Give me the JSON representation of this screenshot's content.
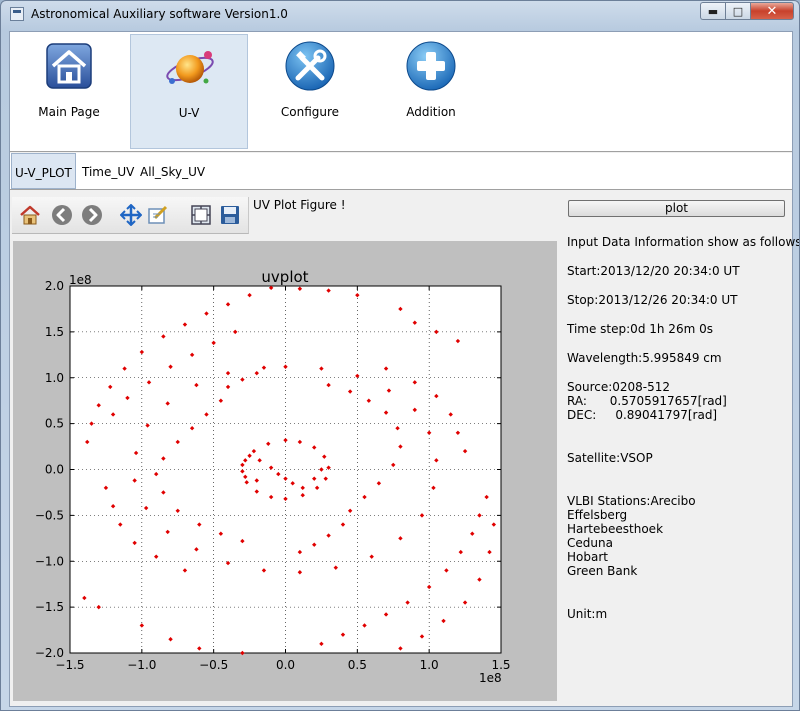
{
  "window": {
    "title": "Astronomical Auxiliary software Version1.0",
    "caption_buttons": {
      "minimize": "▬",
      "maximize": "□",
      "close": "✕"
    }
  },
  "toolbar": {
    "items": [
      {
        "label": "Main Page",
        "icon": "home-icon"
      },
      {
        "label": "U-V",
        "icon": "planet-icon",
        "active": true
      },
      {
        "label": "Configure",
        "icon": "tools-icon"
      },
      {
        "label": "Addition",
        "icon": "plus-icon"
      }
    ]
  },
  "subtabs": [
    {
      "label": "U-V_PLOT",
      "active": true
    },
    {
      "label": "Time_UV"
    },
    {
      "label": "All_Sky_UV"
    }
  ],
  "plot_toolbar": {
    "figure_title": "UV Plot Figure !",
    "tools": [
      "home-icon",
      "back-arrow-icon",
      "forward-arrow-icon",
      "pan-icon",
      "zoom-icon",
      "subplot-config-icon",
      "save-icon"
    ]
  },
  "plot_button": "plot",
  "info": {
    "header": "Input Data Information show as follows:",
    "start": "Start:2013/12/20 20:34:0 UT",
    "stop": "Stop:2013/12/26 20:34:0 UT",
    "time_step": "Time step:0d 1h 26m 0s",
    "wavelength": "Wavelength:5.995849 cm",
    "source": "Source:0208-512",
    "ra": "RA:      0.5705917657[rad]",
    "dec": "DEC:     0.89041797[rad]",
    "satellite": "Satellite:VSOP",
    "stations_header": "VLBI Stations:Arecibo",
    "stations": [
      "Effelsberg",
      "Hartebeesthoek",
      "Ceduna",
      "Hobart",
      "Green Bank"
    ],
    "unit": "Unit:m"
  },
  "chart_data": {
    "type": "scatter",
    "title": "uvplot",
    "x_multiplier": "1e8",
    "y_multiplier": "1e8",
    "xlim": [
      -1.5,
      1.5
    ],
    "ylim": [
      -2.0,
      2.0
    ],
    "xticks": [
      "−1.5",
      "−1.0",
      "−0.5",
      "0.0",
      "0.5",
      "1.0",
      "1.5"
    ],
    "yticks": [
      "2.0",
      "1.5",
      "1.0",
      "0.5",
      "0.0",
      "−0.5",
      "−1.0",
      "−1.5",
      "−2.0"
    ],
    "grid": true,
    "color": "#e00000",
    "series": [
      {
        "points": [
          [
            0.0,
            0.32
          ],
          [
            0.1,
            0.3
          ],
          [
            0.2,
            0.24
          ],
          [
            0.27,
            0.14
          ],
          [
            0.3,
            0.02
          ],
          [
            0.28,
            -0.1
          ],
          [
            0.22,
            -0.2
          ],
          [
            0.12,
            -0.28
          ],
          [
            0.0,
            -0.32
          ],
          [
            -0.1,
            -0.3
          ],
          [
            -0.2,
            -0.24
          ],
          [
            -0.27,
            -0.14
          ],
          [
            -0.3,
            -0.02
          ],
          [
            -0.28,
            0.1
          ],
          [
            -0.22,
            0.2
          ],
          [
            -0.12,
            0.28
          ]
        ]
      },
      {
        "points": [
          [
            -0.25,
            0.15
          ],
          [
            -0.18,
            0.1
          ],
          [
            -0.1,
            0.02
          ],
          [
            -0.05,
            -0.05
          ],
          [
            0.0,
            -0.1
          ],
          [
            0.05,
            -0.15
          ],
          [
            0.12,
            -0.2
          ],
          [
            0.2,
            -0.1
          ],
          [
            0.25,
            0.0
          ],
          [
            -0.3,
            0.05
          ],
          [
            -0.28,
            -0.08
          ],
          [
            -0.2,
            -0.12
          ]
        ]
      },
      {
        "points": [
          [
            0.0,
            1.12
          ],
          [
            0.25,
            1.1
          ],
          [
            0.5,
            1.02
          ],
          [
            0.72,
            0.86
          ],
          [
            0.9,
            0.65
          ],
          [
            1.0,
            0.4
          ],
          [
            1.05,
            0.1
          ],
          [
            1.03,
            -0.2
          ],
          [
            0.95,
            -0.5
          ],
          [
            0.8,
            -0.75
          ],
          [
            0.6,
            -0.95
          ],
          [
            0.35,
            -1.07
          ],
          [
            0.1,
            -1.12
          ],
          [
            -0.15,
            -1.1
          ],
          [
            -0.4,
            -1.02
          ],
          [
            -0.62,
            -0.87
          ],
          [
            -0.82,
            -0.68
          ],
          [
            -0.97,
            -0.42
          ],
          [
            -1.05,
            -0.12
          ],
          [
            -1.04,
            0.18
          ],
          [
            -0.96,
            0.48
          ],
          [
            -0.82,
            0.72
          ],
          [
            -0.62,
            0.92
          ],
          [
            -0.4,
            1.05
          ],
          [
            -0.15,
            1.11
          ]
        ]
      },
      {
        "points": [
          [
            -0.4,
            0.9
          ],
          [
            -0.3,
            0.98
          ],
          [
            -0.2,
            1.05
          ],
          [
            -0.45,
            0.75
          ],
          [
            -0.55,
            0.6
          ],
          [
            -0.65,
            0.45
          ],
          [
            -0.75,
            0.3
          ],
          [
            -0.85,
            0.12
          ],
          [
            -0.9,
            -0.05
          ],
          [
            -0.85,
            -0.25
          ],
          [
            -0.75,
            -0.45
          ],
          [
            -0.6,
            -0.6
          ],
          [
            -0.45,
            -0.7
          ],
          [
            -0.3,
            -0.78
          ]
        ]
      },
      {
        "points": [
          [
            0.4,
            -0.6
          ],
          [
            0.3,
            -0.72
          ],
          [
            0.2,
            -0.82
          ],
          [
            0.1,
            -0.9
          ],
          [
            0.45,
            -0.45
          ],
          [
            0.55,
            -0.3
          ],
          [
            0.65,
            -0.15
          ],
          [
            0.75,
            0.05
          ],
          [
            0.8,
            0.25
          ],
          [
            0.78,
            0.45
          ],
          [
            0.7,
            0.62
          ],
          [
            0.58,
            0.75
          ],
          [
            0.45,
            0.85
          ],
          [
            0.3,
            0.92
          ]
        ]
      },
      {
        "points": [
          [
            -1.35,
            0.5
          ],
          [
            -1.3,
            0.7
          ],
          [
            -1.22,
            0.9
          ],
          [
            -1.12,
            1.1
          ],
          [
            -1.0,
            1.28
          ],
          [
            -0.85,
            1.45
          ],
          [
            -0.7,
            1.58
          ],
          [
            -0.55,
            1.7
          ],
          [
            -0.4,
            1.8
          ],
          [
            -0.25,
            1.9
          ],
          [
            -1.38,
            0.3
          ],
          [
            -1.2,
            0.6
          ],
          [
            -1.1,
            0.78
          ],
          [
            -0.95,
            0.95
          ],
          [
            -0.8,
            1.12
          ],
          [
            -0.65,
            1.25
          ],
          [
            -0.5,
            1.38
          ],
          [
            -0.35,
            1.5
          ]
        ]
      },
      {
        "points": [
          [
            1.35,
            -0.5
          ],
          [
            1.3,
            -0.7
          ],
          [
            1.22,
            -0.9
          ],
          [
            1.12,
            -1.1
          ],
          [
            1.0,
            -1.28
          ],
          [
            0.85,
            -1.45
          ],
          [
            0.7,
            -1.58
          ],
          [
            0.55,
            -1.7
          ],
          [
            0.4,
            -1.8
          ],
          [
            0.25,
            -1.9
          ],
          [
            1.4,
            -0.3
          ],
          [
            1.45,
            -0.6
          ],
          [
            1.42,
            -0.9
          ],
          [
            1.35,
            -1.2
          ],
          [
            1.25,
            -1.45
          ],
          [
            1.1,
            -1.65
          ],
          [
            0.95,
            -1.82
          ],
          [
            0.8,
            -1.95
          ]
        ]
      },
      {
        "points": [
          [
            -1.2,
            -0.4
          ],
          [
            -1.15,
            -0.6
          ],
          [
            -1.05,
            -0.8
          ],
          [
            -0.9,
            -0.95
          ],
          [
            -0.7,
            -1.1
          ],
          [
            -1.25,
            -0.2
          ],
          [
            -1.4,
            -1.4
          ],
          [
            -1.3,
            -1.5
          ],
          [
            -1.0,
            -1.7
          ],
          [
            -0.8,
            -1.85
          ],
          [
            -0.6,
            -1.95
          ],
          [
            -0.3,
            -2.0
          ]
        ]
      },
      {
        "points": [
          [
            1.2,
            0.4
          ],
          [
            1.15,
            0.6
          ],
          [
            1.05,
            0.8
          ],
          [
            0.9,
            0.95
          ],
          [
            0.7,
            1.1
          ],
          [
            1.25,
            0.2
          ],
          [
            0.8,
            1.75
          ],
          [
            0.9,
            1.6
          ],
          [
            1.05,
            1.5
          ],
          [
            1.2,
            1.4
          ],
          [
            0.5,
            1.9
          ],
          [
            0.3,
            1.95
          ],
          [
            0.1,
            1.97
          ],
          [
            -0.1,
            1.98
          ]
        ]
      }
    ]
  },
  "colors": {
    "accent_tab": "#dce6f2",
    "marker": "#e00000",
    "canvas_bg": "#bfbfbf"
  }
}
